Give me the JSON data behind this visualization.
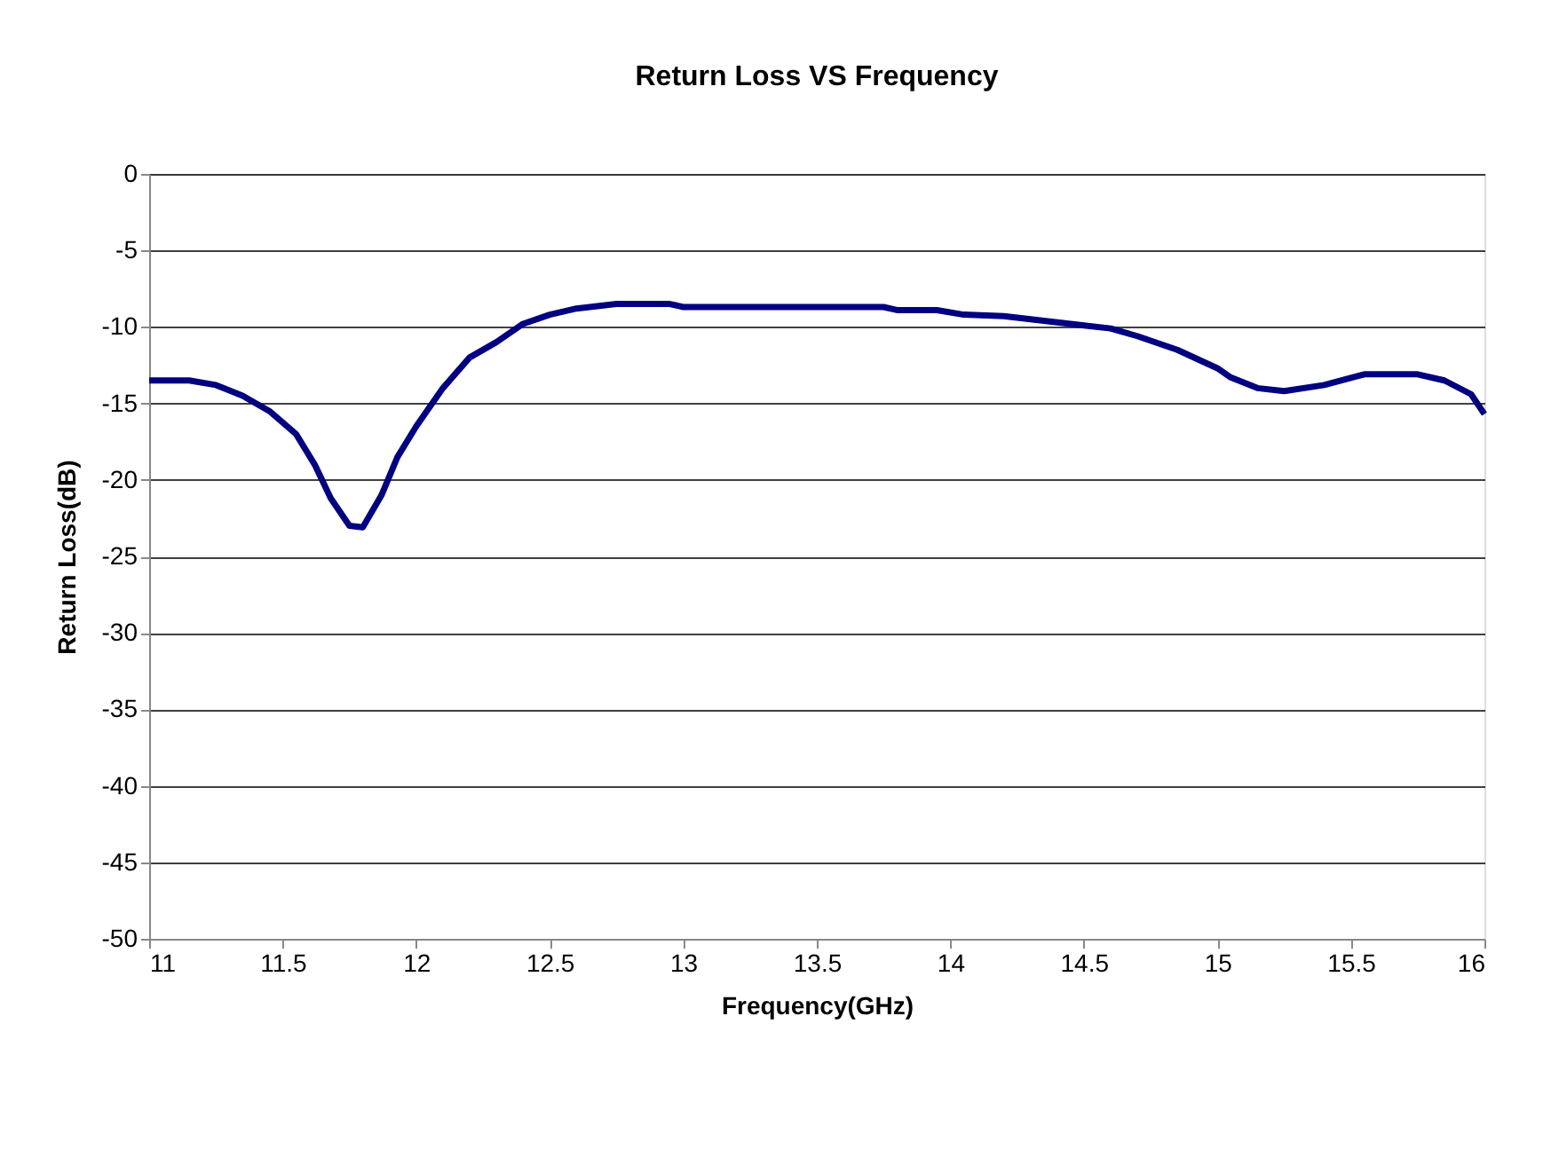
{
  "chart_data": {
    "type": "line",
    "title": "Return Loss VS Frequency",
    "xlabel": "Frequency(GHz)",
    "ylabel": "Return Loss(dB)",
    "x": [
      11.0,
      11.15,
      11.25,
      11.35,
      11.45,
      11.55,
      11.62,
      11.68,
      11.75,
      11.8,
      11.87,
      11.93,
      12.0,
      12.1,
      12.2,
      12.3,
      12.4,
      12.5,
      12.6,
      12.75,
      12.95,
      13.0,
      13.5,
      13.75,
      13.8,
      13.95,
      14.05,
      14.2,
      14.35,
      14.5,
      14.6,
      14.7,
      14.85,
      15.0,
      15.05,
      15.15,
      15.25,
      15.4,
      15.55,
      15.75,
      15.85,
      15.95,
      16.0
    ],
    "series": [
      {
        "color": "#000080",
        "values": [
          -13.5,
          -13.5,
          -13.8,
          -14.5,
          -15.5,
          -17,
          -19,
          -21.2,
          -23,
          -23.1,
          -21,
          -18.5,
          -16.5,
          -14,
          -12,
          -11,
          -9.8,
          -9.2,
          -8.8,
          -8.5,
          -8.5,
          -8.7,
          -8.7,
          -8.7,
          -8.9,
          -8.9,
          -9.2,
          -9.3,
          -9.6,
          -9.9,
          -10.1,
          -10.6,
          -11.5,
          -12.7,
          -13.3,
          -14,
          -14.2,
          -13.8,
          -13.1,
          -13.1,
          -13.5,
          -14.4,
          -15.7
        ]
      }
    ],
    "xlim": [
      11,
      16
    ],
    "xticks": [
      11,
      11.5,
      12,
      12.5,
      13,
      13.5,
      14,
      14.5,
      15,
      15.5,
      16
    ],
    "ylim": [
      -50,
      0
    ],
    "yticks": [
      -50,
      -45,
      -40,
      -35,
      -30,
      -25,
      -20,
      -15,
      -10,
      -5,
      0
    ],
    "grid": "y",
    "legend": false,
    "marker": "none",
    "line_style": "solid"
  }
}
